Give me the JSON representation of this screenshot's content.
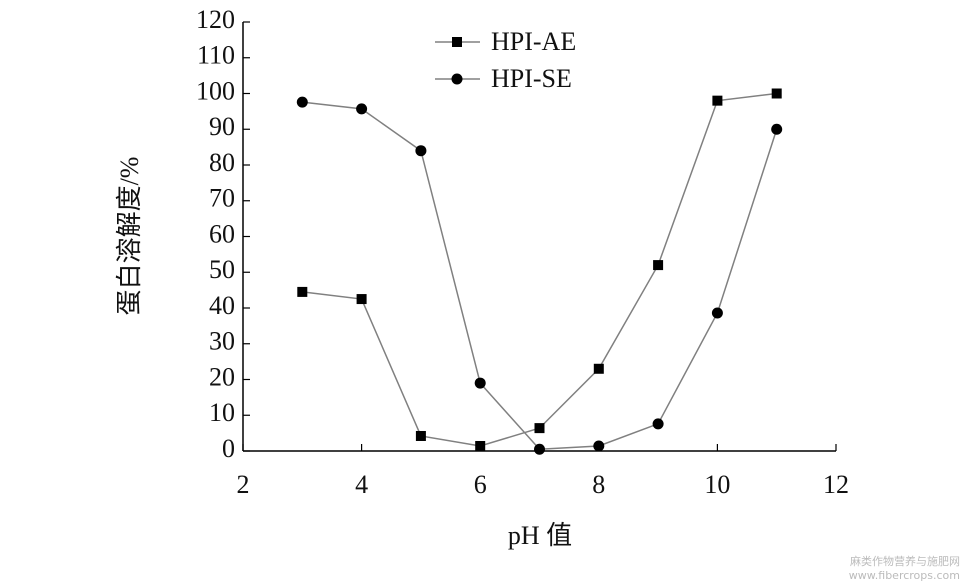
{
  "chart_data": {
    "type": "line",
    "x_label": "pH 值",
    "y_label": "蛋白溶解度/%",
    "x": [
      3,
      4,
      5,
      6,
      7,
      8,
      9,
      10,
      11
    ],
    "series": [
      {
        "name": "HPI-AE",
        "color": "#000000",
        "line_color": "#808080",
        "marker": "square",
        "values": [
          44.5,
          42.5,
          4.2,
          1.4,
          6.4,
          23,
          52,
          98,
          100
        ]
      },
      {
        "name": "HPI-SE",
        "color": "#000000",
        "line_color": "#808080",
        "marker": "circle",
        "values": [
          97.6,
          95.7,
          84,
          19,
          0.5,
          1.4,
          7.6,
          38.6,
          90
        ]
      }
    ],
    "xlim": [
      2,
      12
    ],
    "xticks": [
      2,
      4,
      6,
      8,
      10,
      12
    ],
    "ylim": [
      0,
      120
    ],
    "yticks": [
      0,
      10,
      20,
      30,
      40,
      50,
      60,
      70,
      80,
      90,
      100,
      110,
      120
    ],
    "legend": "upper center",
    "grid": false
  },
  "watermark": {
    "line1": "麻类作物营养与施肥网",
    "line2": "www.fibercrops.com"
  }
}
